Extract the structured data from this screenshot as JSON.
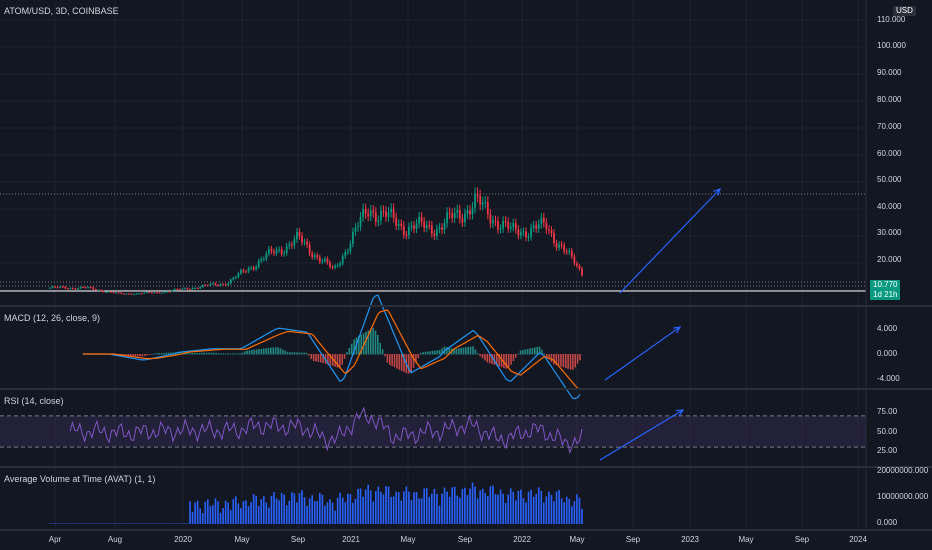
{
  "header": {
    "symbol_label": "ATOM/USD, 3D, COINBASE",
    "currency": "USD"
  },
  "price_axis": {
    "labels": [
      "110.000",
      "100.000",
      "90.000",
      "80.000",
      "70.000",
      "60.000",
      "50.000",
      "40.000",
      "30.000",
      "20.000"
    ]
  },
  "price_badge": {
    "price": "10.770",
    "countdown": "1d 21h",
    "color": "#089981"
  },
  "macd": {
    "title": "MACD (12, 26, close, 9)",
    "axis_labels": [
      "4.000",
      "0.000",
      "-4.000"
    ]
  },
  "rsi": {
    "title": "RSI (14, close)",
    "axis_labels": [
      "75.00",
      "50.00",
      "25.00"
    ]
  },
  "avat": {
    "title": "Average Volume at Time (AVAT) (1, 1)",
    "axis_labels": [
      "20000000.000",
      "10000000.000",
      "0.000"
    ]
  },
  "time_axis": {
    "labels": [
      "Apr",
      "Aug",
      "2020",
      "May",
      "Sep",
      "2021",
      "May",
      "Sep",
      "2022",
      "May",
      "Sep",
      "2023",
      "May",
      "Sep",
      "2024"
    ]
  },
  "colors": {
    "up": "#089981",
    "down": "#f23645",
    "accent": "#2962ff",
    "macd_line": "#2196f3",
    "signal_line": "#ff6d00",
    "rsi_line": "#7e57c2",
    "volume": "#2962ff"
  },
  "chart_data": {
    "type": "line",
    "title": "ATOM/USD, 3D, COINBASE",
    "xlabel": "",
    "ylabel": "",
    "x": [
      "2019-04",
      "2019-08",
      "2020-01",
      "2020-05",
      "2020-09",
      "2021-01",
      "2021-03",
      "2021-05",
      "2021-07",
      "2021-09",
      "2021-10",
      "2021-12",
      "2022-01",
      "2022-02",
      "2022-03",
      "2022-05"
    ],
    "series": [
      {
        "values": [
          5,
          5,
          2.5,
          3,
          5,
          7,
          17,
          25,
          12,
          38,
          30,
          30,
          40,
          28,
          30,
          11
        ]
      }
    ],
    "ylim": [
      0,
      115
    ]
  }
}
